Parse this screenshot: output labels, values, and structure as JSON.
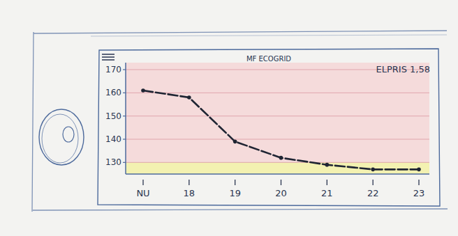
{
  "chart_data": {
    "type": "line",
    "title": "MF ECOGRID",
    "annotation": "ELPRIS 1,58",
    "categories": [
      "NU",
      "18",
      "19",
      "20",
      "21",
      "22",
      "23"
    ],
    "values": [
      161,
      158,
      139,
      132,
      129,
      127,
      127
    ],
    "color": "#1f2533",
    "marker": "circle",
    "line_style": "dashed",
    "ylim": [
      125,
      173
    ],
    "yticks": [
      130,
      140,
      150,
      160,
      170
    ],
    "grid": true
  }
}
